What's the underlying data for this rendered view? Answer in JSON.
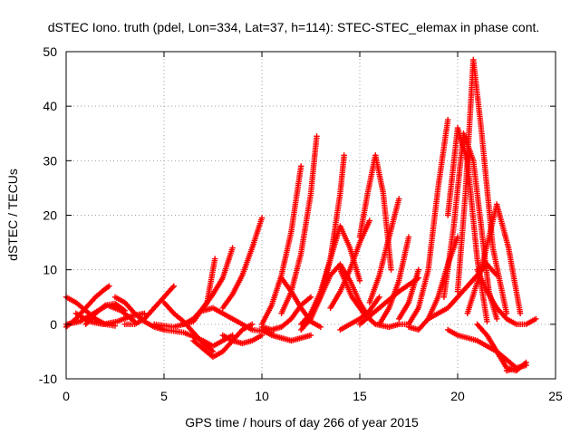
{
  "chart_data": {
    "type": "scatter",
    "title": "dSTEC Iono. truth (pdel, Lon=334, Lat=37, h=114): STEC-STEC_elemax in phase cont.",
    "xlabel": "GPS time / hours of day 266 of year 2015",
    "ylabel": "dSTEC  / TECUs",
    "xlim": [
      0,
      25
    ],
    "ylim": [
      -10,
      50
    ],
    "xticks": [
      0,
      5,
      10,
      15,
      20,
      25
    ],
    "yticks": [
      -10,
      0,
      10,
      20,
      30,
      40,
      50
    ],
    "xtick_labels": [
      "0",
      "5",
      "10",
      "15",
      "20",
      "25"
    ],
    "ytick_labels": [
      "-10",
      "0",
      "10",
      "20",
      "30",
      "40",
      "50"
    ],
    "grid": true,
    "marker": "+",
    "color": "#ff0000",
    "legend": "none",
    "series": [
      {
        "x": [
          0.0,
          0.5,
          1.0,
          1.5,
          2.0,
          2.2
        ],
        "y": [
          -0.5,
          1.0,
          3.0,
          5.0,
          6.5,
          7.0
        ]
      },
      {
        "x": [
          0.0,
          0.5,
          1.0,
          1.5,
          2.0,
          2.5
        ],
        "y": [
          5.0,
          4.0,
          2.5,
          1.0,
          0.0,
          -0.3
        ]
      },
      {
        "x": [
          0.0,
          0.7,
          1.4,
          2.1,
          2.8,
          3.5
        ],
        "y": [
          0.0,
          0.5,
          2.0,
          3.5,
          2.5,
          0.5
        ]
      },
      {
        "x": [
          0.5,
          1.2,
          1.9,
          2.6,
          3.3,
          4.0
        ],
        "y": [
          2.0,
          0.5,
          0.0,
          0.5,
          1.5,
          2.0
        ]
      },
      {
        "x": [
          1.0,
          1.5,
          2.0,
          2.5,
          3.0
        ],
        "y": [
          0.0,
          2.0,
          3.5,
          3.8,
          2.5
        ]
      },
      {
        "x": [
          2.5,
          3.0,
          3.5,
          4.0,
          4.5,
          5.0
        ],
        "y": [
          5.0,
          4.0,
          2.0,
          0.5,
          -0.5,
          -1.0
        ]
      },
      {
        "x": [
          3.0,
          3.5,
          4.0,
          4.5,
          5.0,
          5.5
        ],
        "y": [
          0.0,
          0.0,
          1.0,
          3.0,
          5.0,
          7.0
        ]
      },
      {
        "x": [
          4.5,
          5.5,
          6.5,
          7.2,
          7.6
        ],
        "y": [
          0.0,
          -0.5,
          0.5,
          4.0,
          12.0
        ]
      },
      {
        "x": [
          5.0,
          5.5,
          6.0,
          6.5,
          7.0,
          7.5
        ],
        "y": [
          4.0,
          2.0,
          0.5,
          -1.5,
          -3.5,
          -5.0
        ]
      },
      {
        "x": [
          5.0,
          6.0,
          7.0,
          7.5,
          8.5
        ],
        "y": [
          -1.0,
          -1.5,
          -3.0,
          -4.0,
          -2.0
        ]
      },
      {
        "x": [
          6.0,
          6.5,
          7.0,
          7.5,
          8.0,
          8.5
        ],
        "y": [
          0.0,
          1.0,
          3.0,
          5.5,
          8.5,
          14.0
        ]
      },
      {
        "x": [
          7.0,
          7.5,
          8.0,
          8.5,
          9.5,
          10.5
        ],
        "y": [
          2.5,
          3.0,
          2.0,
          1.0,
          -1.0,
          -1.5
        ]
      },
      {
        "x": [
          6.5,
          7.0,
          7.5,
          8.0,
          8.5,
          9.0,
          9.5
        ],
        "y": [
          -3.0,
          -4.5,
          -6.0,
          -5.0,
          -3.0,
          -1.0,
          0.0
        ]
      },
      {
        "x": [
          8.0,
          8.5,
          9.0,
          9.5,
          10.0
        ],
        "y": [
          3.0,
          5.5,
          9.0,
          14.0,
          19.5
        ]
      },
      {
        "x": [
          8.0,
          8.5,
          9.0,
          9.5,
          10.0
        ],
        "y": [
          -2.0,
          -3.0,
          -3.5,
          -3.0,
          -2.0
        ]
      },
      {
        "x": [
          10.0,
          10.5,
          11.0,
          11.5,
          12.0
        ],
        "y": [
          0.0,
          3.5,
          9.0,
          17.0,
          29.0
        ]
      },
      {
        "x": [
          10.0,
          10.5,
          11.0,
          11.5,
          12.0,
          12.5
        ],
        "y": [
          -1.0,
          -2.0,
          -2.5,
          -3.0,
          -2.5,
          -2.0
        ]
      },
      {
        "x": [
          10.0,
          10.5,
          11.0,
          11.5,
          12.0,
          12.5
        ],
        "y": [
          -0.5,
          -1.0,
          -0.5,
          1.0,
          3.5,
          5.0
        ]
      },
      {
        "x": [
          11.0,
          11.5,
          12.0,
          12.5,
          12.8
        ],
        "y": [
          2.0,
          6.0,
          13.0,
          24.0,
          34.5
        ]
      },
      {
        "x": [
          11.0,
          11.5,
          12.0,
          12.5,
          13.0
        ],
        "y": [
          8.5,
          6.0,
          3.0,
          0.5,
          -0.5
        ]
      },
      {
        "x": [
          12.0,
          12.5,
          13.0,
          13.5,
          14.0,
          14.2
        ],
        "y": [
          -1.0,
          1.0,
          5.0,
          12.0,
          24.0,
          31.0
        ]
      },
      {
        "x": [
          12.0,
          12.5,
          13.0,
          13.5,
          14.0,
          14.5,
          15.0,
          15.5
        ],
        "y": [
          0.0,
          2.0,
          5.0,
          9.0,
          11.0,
          8.0,
          4.0,
          1.0
        ]
      },
      {
        "x": [
          12.5,
          13.0,
          13.5,
          14.0,
          14.5,
          15.0
        ],
        "y": [
          2.0,
          6.0,
          12.0,
          18.0,
          14.0,
          8.0
        ]
      },
      {
        "x": [
          13.5,
          14.0,
          14.5,
          15.0,
          15.5
        ],
        "y": [
          3.0,
          6.0,
          10.0,
          15.0,
          19.0
        ]
      },
      {
        "x": [
          14.0,
          14.5,
          15.0,
          15.5,
          16.0
        ],
        "y": [
          -1.0,
          0.0,
          1.0,
          2.5,
          5.0
        ]
      },
      {
        "x": [
          15.0,
          15.4,
          15.8,
          16.2,
          16.6
        ],
        "y": [
          16.0,
          24.0,
          31.0,
          24.0,
          10.0
        ]
      },
      {
        "x": [
          14.0,
          14.6,
          15.2,
          15.8,
          16.5,
          17.0
        ],
        "y": [
          10.0,
          5.0,
          2.0,
          0.0,
          -0.5,
          0.0
        ]
      },
      {
        "x": [
          15.5,
          16.0,
          16.5,
          17.0
        ],
        "y": [
          4.0,
          9.0,
          16.0,
          23.0
        ]
      },
      {
        "x": [
          16.0,
          16.5,
          17.0,
          17.5
        ],
        "y": [
          0.0,
          3.0,
          8.0,
          16.0
        ]
      },
      {
        "x": [
          17.0,
          17.5,
          18.0
        ],
        "y": [
          1.0,
          4.0,
          10.0
        ]
      },
      {
        "x": [
          15.0,
          16.0,
          17.0,
          18.0
        ],
        "y": [
          0.0,
          3.0,
          6.0,
          8.5
        ]
      },
      {
        "x": [
          17.0,
          17.5,
          18.0,
          18.5,
          19.0,
          19.5
        ],
        "y": [
          0.0,
          0.0,
          3.0,
          10.0,
          25.0,
          37.5
        ]
      },
      {
        "x": [
          17.5,
          18.0,
          18.5,
          19.0,
          19.5,
          20.0
        ],
        "y": [
          -0.5,
          -1.0,
          1.0,
          5.0,
          11.0,
          16.0
        ]
      },
      {
        "x": [
          19.5,
          20.0,
          20.5,
          21.0,
          21.5
        ],
        "y": [
          20.0,
          36.0,
          30.0,
          12.0,
          0.5
        ]
      },
      {
        "x": [
          19.3,
          19.8,
          20.3,
          20.8,
          21.2,
          21.6,
          22.0
        ],
        "y": [
          5.0,
          18.0,
          35.0,
          30.0,
          18.0,
          6.0,
          1.0
        ]
      },
      {
        "x": [
          20.0,
          20.4,
          20.8,
          21.2,
          21.8,
          22.5
        ],
        "y": [
          6.0,
          24.0,
          48.5,
          36.0,
          14.0,
          2.0
        ]
      },
      {
        "x": [
          20.5,
          21.2,
          22.0,
          22.6,
          23.2
        ],
        "y": [
          2.0,
          10.0,
          22.0,
          14.0,
          2.0
        ]
      },
      {
        "x": [
          21.0,
          21.5,
          22.0,
          22.5,
          23.0,
          23.5
        ],
        "y": [
          0.0,
          -2.0,
          -5.0,
          -8.0,
          -8.5,
          -7.0
        ]
      },
      {
        "x": [
          21.0,
          21.5,
          22.0,
          22.5,
          23.0,
          23.5,
          24.0
        ],
        "y": [
          10.0,
          6.0,
          3.0,
          1.0,
          0.0,
          0.0,
          1.0
        ]
      },
      {
        "x": [
          18.5,
          19.5,
          20.5,
          21.5,
          22.0
        ],
        "y": [
          1.0,
          3.0,
          7.0,
          11.0,
          9.0
        ]
      },
      {
        "x": [
          19.5,
          20.0,
          21.0,
          22.0,
          23.0
        ],
        "y": [
          -1.0,
          -2.0,
          -3.0,
          -5.0,
          -8.0
        ]
      },
      {
        "x": [
          22.5,
          23.0,
          23.5
        ],
        "y": [
          -8.5,
          -8.0,
          -7.5
        ]
      }
    ]
  }
}
